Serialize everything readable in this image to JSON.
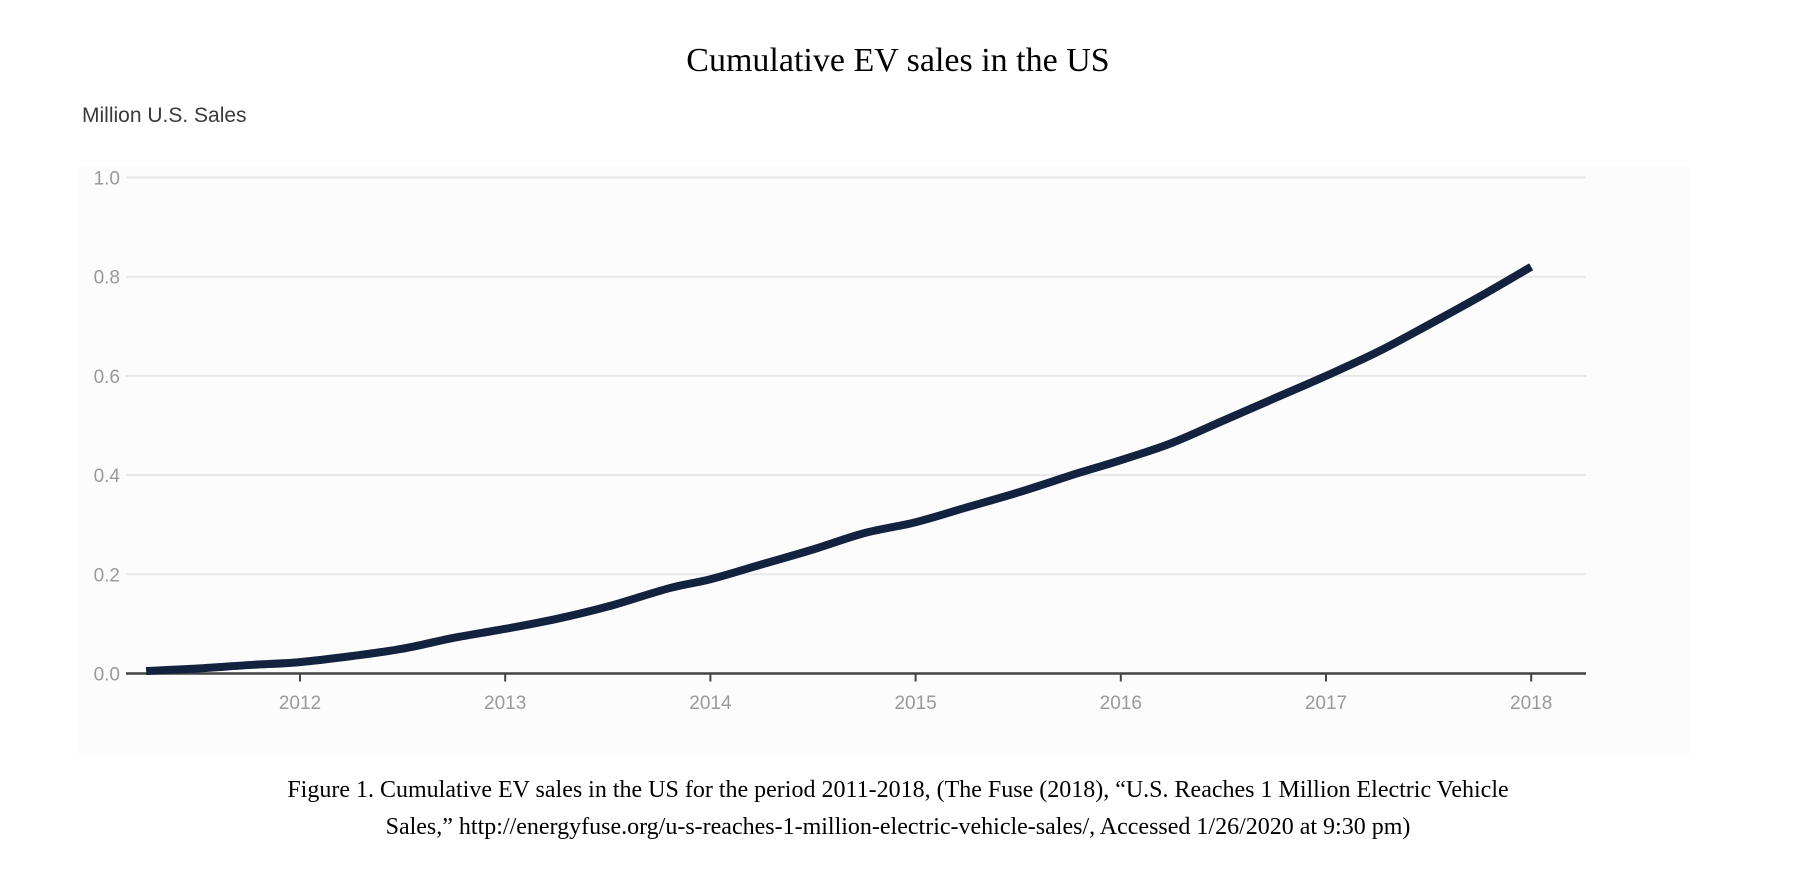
{
  "chart_data": {
    "type": "line",
    "title": "Cumulative EV sales in the US",
    "ylabel": "Million U.S. Sales",
    "xlabel": "",
    "ylim": [
      0,
      1.0
    ],
    "xlim": [
      2011.2,
      2018.25
    ],
    "yticks": [
      "0.0",
      "0.2",
      "0.4",
      "0.6",
      "0.8",
      "1.0"
    ],
    "xticks": [
      "2012",
      "2013",
      "2014",
      "2015",
      "2016",
      "2017",
      "2018"
    ],
    "grid": true,
    "line_color": "#13233f",
    "series": [
      {
        "x": [
          2011.25,
          2011.5,
          2011.75,
          2012,
          2012.25,
          2012.5,
          2012.75,
          2013,
          2013.25,
          2013.5,
          2013.8,
          2014,
          2014.25,
          2014.5,
          2014.75,
          2015,
          2015.25,
          2015.5,
          2015.8,
          2016,
          2016.25,
          2016.5,
          2016.75,
          2017,
          2017.25,
          2017.5,
          2017.75,
          2018
        ],
        "y": [
          0.005,
          0.01,
          0.017,
          0.023,
          0.035,
          0.05,
          0.072,
          0.09,
          0.11,
          0.135,
          0.172,
          0.19,
          0.22,
          0.25,
          0.283,
          0.305,
          0.335,
          0.365,
          0.405,
          0.43,
          0.465,
          0.51,
          0.555,
          0.6,
          0.648,
          0.703,
          0.76,
          0.82
        ]
      }
    ]
  },
  "caption": {
    "line1": "Figure 1. Cumulative EV sales in the US for the period 2011-2018, (The Fuse (2018), “U.S. Reaches 1 Million Electric Vehicle",
    "line2": "Sales,” http://energyfuse.org/u-s-reaches-1-million-electric-vehicle-sales/, Accessed 1/26/2020 at 9:30 pm)"
  }
}
